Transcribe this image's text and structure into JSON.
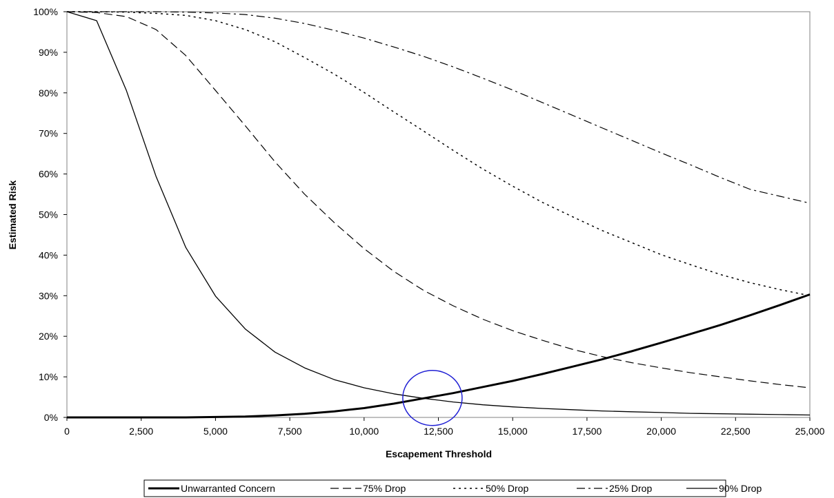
{
  "chart_data": {
    "type": "line",
    "xlabel": "Escapement Threshold",
    "ylabel": "Estimated Risk",
    "xlim": [
      0,
      25000
    ],
    "ylim": [
      0,
      100
    ],
    "x_ticks": [
      0,
      2500,
      5000,
      7500,
      10000,
      12500,
      15000,
      17500,
      20000,
      22500,
      25000
    ],
    "x_tick_labels": [
      "0",
      "2,500",
      "5,000",
      "7,500",
      "10,000",
      "12,500",
      "15,000",
      "17,500",
      "20,000",
      "22,500",
      "25,000"
    ],
    "y_ticks": [
      0,
      10,
      20,
      30,
      40,
      50,
      60,
      70,
      80,
      90,
      100
    ],
    "y_tick_labels": [
      "0%",
      "10%",
      "20%",
      "30%",
      "40%",
      "50%",
      "60%",
      "70%",
      "80%",
      "90%",
      "100%"
    ],
    "grid": false,
    "legend_position": "bottom",
    "x": [
      0,
      1000,
      2000,
      3000,
      4000,
      5000,
      6000,
      7000,
      8000,
      9000,
      10000,
      11000,
      12000,
      13000,
      14000,
      15000,
      16000,
      17000,
      18000,
      19000,
      20000,
      21000,
      22000,
      23000,
      24000,
      25000
    ],
    "series": [
      {
        "name": "Unwarranted Concern",
        "style": "bold-solid",
        "values": [
          0,
          0,
          0,
          0,
          0,
          0.1,
          0.2,
          0.5,
          0.9,
          1.5,
          2.3,
          3.4,
          4.7,
          6.0,
          7.5,
          9.0,
          10.7,
          12.5,
          14.3,
          16.3,
          18.4,
          20.6,
          22.8,
          25.2,
          27.7,
          30.3
        ]
      },
      {
        "name": "75% Drop",
        "style": "dashed",
        "values": [
          100,
          99.8,
          98.8,
          95.6,
          89.2,
          80.6,
          71.9,
          63.0,
          55.0,
          48.0,
          41.6,
          36.0,
          31.3,
          27.5,
          24.2,
          21.4,
          19.0,
          16.8,
          15.0,
          13.5,
          12.2,
          11.0,
          10.0,
          9.0,
          8.1,
          7.3
        ]
      },
      {
        "name": "50% Drop",
        "style": "dotted",
        "values": [
          100,
          100,
          99.9,
          99.6,
          99.1,
          97.8,
          95.6,
          92.6,
          88.7,
          84.6,
          80.1,
          75.3,
          70.6,
          65.8,
          61.2,
          57.0,
          53.0,
          49.5,
          46.1,
          43.1,
          40.1,
          37.6,
          35.2,
          33.2,
          31.5,
          30.0
        ]
      },
      {
        "name": "25% Drop",
        "style": "dash-dot",
        "values": [
          100,
          100,
          100,
          100,
          99.9,
          99.7,
          99.3,
          98.4,
          97.1,
          95.4,
          93.5,
          91.3,
          89.0,
          86.4,
          83.6,
          80.7,
          77.6,
          74.5,
          71.4,
          68.3,
          65.2,
          62.2,
          59.1,
          56.2,
          54.5,
          52.8
        ]
      },
      {
        "name": "90% Drop",
        "style": "solid",
        "values": [
          100,
          97.8,
          80.6,
          59.4,
          41.9,
          29.9,
          21.8,
          16.1,
          12.2,
          9.3,
          7.3,
          5.8,
          4.7,
          3.8,
          3.1,
          2.6,
          2.2,
          1.9,
          1.6,
          1.4,
          1.2,
          1.0,
          0.9,
          0.8,
          0.7,
          0.6
        ]
      }
    ],
    "annotation": {
      "type": "ellipse",
      "x": 12300,
      "y": 4.8,
      "color": "#1f1fd4"
    }
  }
}
